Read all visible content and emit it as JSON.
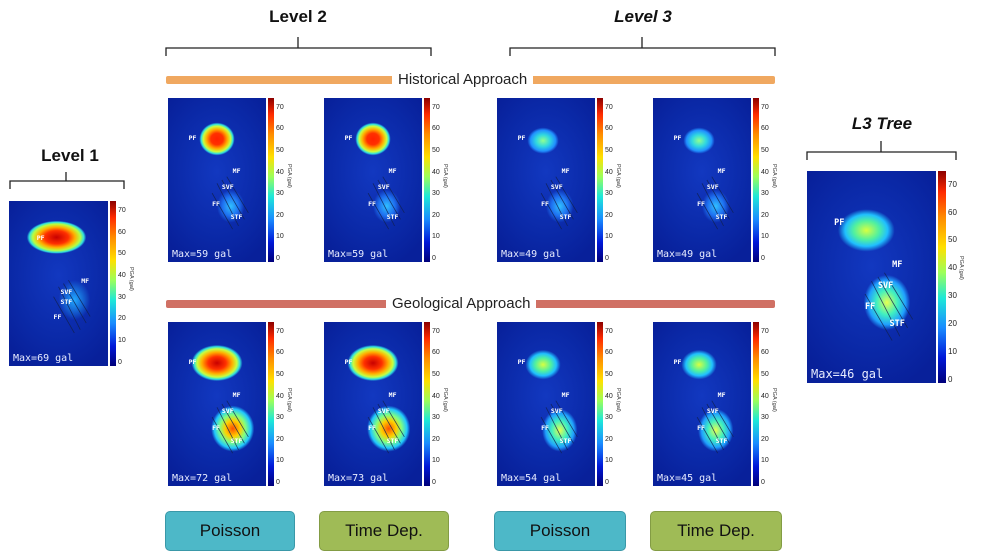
{
  "headers": {
    "level1": "Level 1",
    "level2": "Level 2",
    "level3": "Level 3",
    "l3tree": "L3 Tree"
  },
  "bands": {
    "historical": "Historical Approach",
    "geological": "Geological Approach",
    "historical_color": "#f0a860",
    "geological_color": "#d07064"
  },
  "colorbar": {
    "ticks": [
      "70",
      "60",
      "50",
      "40",
      "30",
      "20",
      "10",
      "0"
    ],
    "label": "PGA (gal)"
  },
  "faults": {
    "pf": "PF",
    "mf": "MF",
    "svf": "SVF",
    "ff": "FF",
    "stf": "STF"
  },
  "maps": {
    "level1": {
      "max": "Max=69 gal"
    },
    "hist_l2_poisson": {
      "max": "Max=59 gal"
    },
    "hist_l2_timedep": {
      "max": "Max=59 gal"
    },
    "hist_l3_poisson": {
      "max": "Max=49 gal"
    },
    "hist_l3_timedep": {
      "max": "Max=49 gal"
    },
    "geo_l2_poisson": {
      "max": "Max=72 gal"
    },
    "geo_l2_timedep": {
      "max": "Max=73 gal"
    },
    "geo_l3_poisson": {
      "max": "Max=54 gal"
    },
    "geo_l3_timedep": {
      "max": "Max=45 gal"
    },
    "l3tree": {
      "max": "Max=46 gal"
    }
  },
  "buttons": {
    "poisson": "Poisson",
    "timedep": "Time Dep."
  }
}
